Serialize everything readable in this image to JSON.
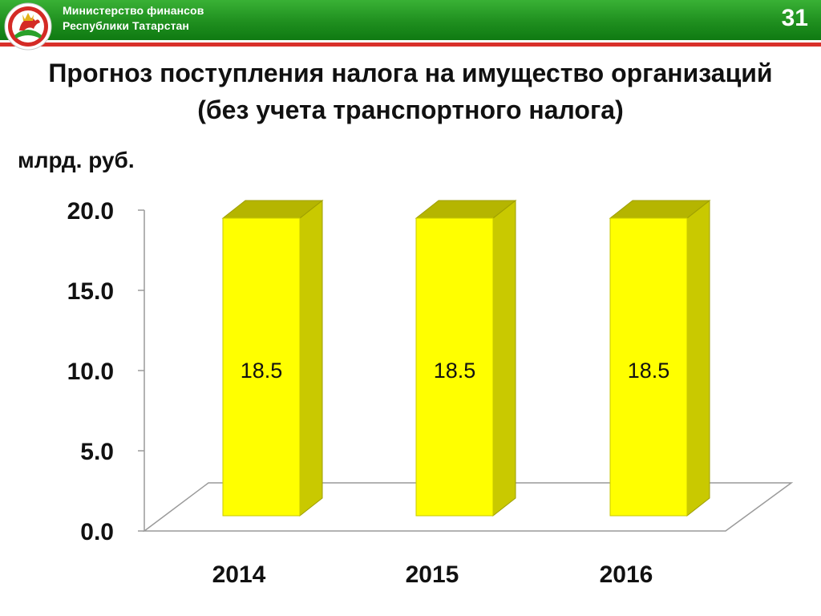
{
  "header": {
    "ministry_line1": "Министерство финансов",
    "ministry_line2": "Республики Татарстан",
    "page_number": "31",
    "colors": {
      "green": "#2aa02a",
      "red_stripe": "#d9302a"
    }
  },
  "logo": {
    "icon": "tatarstan-emblem-icon"
  },
  "chart_data": {
    "type": "bar",
    "title_line1": "Прогноз поступления налога на имущество организаций",
    "title_line2": "(без учета транспортного налога)",
    "unit_label": "млрд. руб.",
    "categories": [
      "2014",
      "2015",
      "2016"
    ],
    "values": [
      18.5,
      18.5,
      18.5
    ],
    "data_labels": [
      "18.5",
      "18.5",
      "18.5"
    ],
    "ylim": [
      0,
      20
    ],
    "yticks": [
      "0.0",
      "5.0",
      "10.0",
      "15.0",
      "20.0"
    ],
    "ytick_values": [
      0,
      5,
      10,
      15,
      20
    ],
    "bar_color": "#ffff00",
    "grid": false,
    "style": "3d"
  }
}
